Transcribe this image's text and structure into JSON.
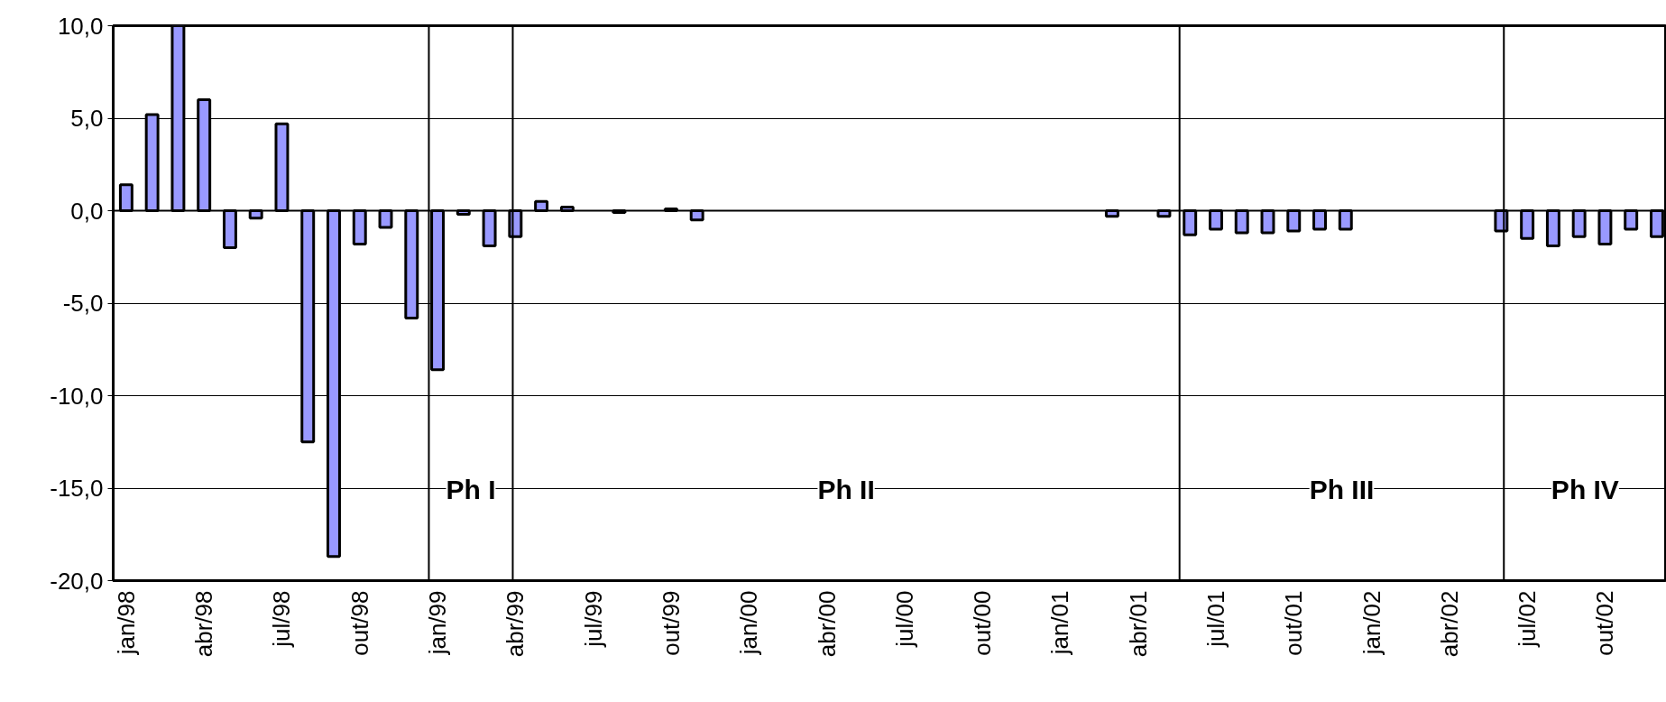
{
  "chart_data": {
    "type": "bar",
    "x": [
      "1998-01",
      "1998-02",
      "1998-03",
      "1998-04",
      "1998-05",
      "1998-06",
      "1998-07",
      "1998-08",
      "1998-09",
      "1998-10",
      "1998-11",
      "1998-12",
      "1999-01",
      "1999-02",
      "1999-03",
      "1999-04",
      "1999-05",
      "1999-06",
      "1999-07",
      "1999-08",
      "1999-09",
      "1999-10",
      "1999-11",
      "1999-12",
      "2000-01",
      "2000-02",
      "2000-03",
      "2000-04",
      "2000-05",
      "2000-06",
      "2000-07",
      "2000-08",
      "2000-09",
      "2000-10",
      "2000-11",
      "2000-12",
      "2001-01",
      "2001-02",
      "2001-03",
      "2001-04",
      "2001-05",
      "2001-06",
      "2001-07",
      "2001-08",
      "2001-09",
      "2001-10",
      "2001-11",
      "2001-12",
      "2002-01",
      "2002-02",
      "2002-03",
      "2002-04",
      "2002-05",
      "2002-06",
      "2002-07",
      "2002-08",
      "2002-09",
      "2002-10",
      "2002-11",
      "2002-12"
    ],
    "values": [
      1.4,
      5.2,
      10.0,
      6.0,
      -2.0,
      -0.4,
      4.7,
      -12.5,
      -18.7,
      -1.8,
      -0.9,
      -5.8,
      -8.6,
      -0.2,
      -1.9,
      -1.4,
      0.5,
      0.2,
      null,
      -0.1,
      null,
      0.1,
      -0.5,
      null,
      null,
      null,
      null,
      null,
      null,
      null,
      null,
      null,
      null,
      null,
      null,
      null,
      null,
      null,
      -0.3,
      null,
      -0.3,
      -1.3,
      -1.0,
      -1.2,
      -1.2,
      -1.1,
      -1.0,
      -1.0,
      null,
      null,
      null,
      null,
      null,
      -1.1,
      -1.5,
      -1.9,
      -1.4,
      -1.8,
      -1.0,
      -1.4
    ],
    "color": "#9999ff",
    "xlim": [
      "1997-12-16",
      "2002-12-12"
    ],
    "xticks": [
      {
        "value": "1998-01",
        "label": "jan/98"
      },
      {
        "value": "1998-04",
        "label": "abr/98"
      },
      {
        "value": "1998-07",
        "label": "jul/98"
      },
      {
        "value": "1998-10",
        "label": "out/98"
      },
      {
        "value": "1999-01",
        "label": "jan/99"
      },
      {
        "value": "1999-04",
        "label": "abr/99"
      },
      {
        "value": "1999-07",
        "label": "jul/99"
      },
      {
        "value": "1999-10",
        "label": "out/99"
      },
      {
        "value": "2000-01",
        "label": "jan/00"
      },
      {
        "value": "2000-04",
        "label": "abr/00"
      },
      {
        "value": "2000-07",
        "label": "jul/00"
      },
      {
        "value": "2000-10",
        "label": "out/00"
      },
      {
        "value": "2001-01",
        "label": "jan/01"
      },
      {
        "value": "2001-04",
        "label": "abr/01"
      },
      {
        "value": "2001-07",
        "label": "jul/01"
      },
      {
        "value": "2001-10",
        "label": "out/01"
      },
      {
        "value": "2002-01",
        "label": "jan/02"
      },
      {
        "value": "2002-04",
        "label": "abr/02"
      },
      {
        "value": "2002-07",
        "label": "jul/02"
      },
      {
        "value": "2002-10",
        "label": "out/02"
      }
    ],
    "ylim": [
      -20,
      10
    ],
    "yticks": [
      {
        "value": -20,
        "label": "-20,0"
      },
      {
        "value": -15,
        "label": "-15,0"
      },
      {
        "value": -10,
        "label": "-10,0"
      },
      {
        "value": -5,
        "label": "-5,0"
      },
      {
        "value": 0,
        "label": "0,0"
      },
      {
        "value": 5,
        "label": "5,0"
      },
      {
        "value": 10,
        "label": "10,0"
      }
    ],
    "grid": "y",
    "ref_lines": [
      {
        "axis": "x",
        "value": "1998-12-21",
        "color": "#000000"
      },
      {
        "axis": "x",
        "value": "1999-03-28",
        "color": "#000000"
      },
      {
        "axis": "x",
        "value": "2001-05-19",
        "color": "#000000"
      },
      {
        "axis": "x",
        "value": "2002-06-04",
        "color": "#000000"
      }
    ],
    "annotations": [
      "Ph I",
      "Ph II",
      "Ph III",
      "Ph IV"
    ]
  }
}
